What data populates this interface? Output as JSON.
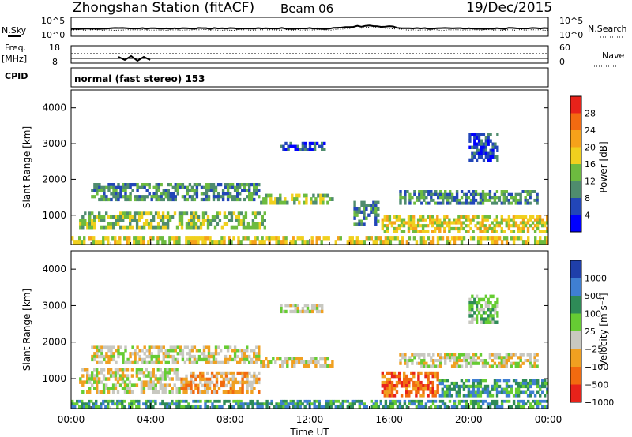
{
  "header": {
    "station": "Zhongshan Station (fitACF)",
    "beam": "Beam 06",
    "date": "19/Dec/2015"
  },
  "top_panels": {
    "nsky_label": "N.Sky",
    "nsky_ticks": [
      "10^5",
      "10^0"
    ],
    "nsearch_label": "N.Search",
    "nsearch_ticks": [
      "10^5",
      "10^0"
    ],
    "freq_label_1": "Freq.",
    "freq_label_2": "[MHz]",
    "freq_ticks": [
      "18",
      "8"
    ],
    "nave_label": "Nave",
    "nave_ticks": [
      "60",
      "0"
    ],
    "cpid_label": "CPID",
    "cpid_text": "normal (fast stereo) 153"
  },
  "chart_data": [
    {
      "type": "heatmap",
      "title": "",
      "ylabel": "Slant Range [km]",
      "ylim": [
        180,
        4500
      ],
      "yticks": [
        "1000",
        "2000",
        "3000",
        "4000"
      ],
      "colorbar_label": "Power [dB]",
      "colorbar_ticks": [
        "4",
        "8",
        "12",
        "16",
        "20",
        "24",
        "28"
      ],
      "colorscale": [
        "#0000ff",
        "#2246b8",
        "#4f8c6e",
        "#6dbb3f",
        "#f0d01e",
        "#f6a21a",
        "#f36a11",
        "#e8221a"
      ],
      "regions": [
        {
          "t0": 0.0,
          "t1": 24.0,
          "r0": 200,
          "r1": 420,
          "level": 4
        },
        {
          "t0": 0.4,
          "t1": 9.8,
          "r0": 620,
          "r1": 1100,
          "level": 3
        },
        {
          "t0": 15.6,
          "t1": 24.0,
          "r0": 500,
          "r1": 1000,
          "level": 4
        },
        {
          "t0": 1.0,
          "t1": 9.5,
          "r0": 1400,
          "r1": 1900,
          "level": 2
        },
        {
          "t0": 9.5,
          "t1": 13.2,
          "r0": 1300,
          "r1": 1600,
          "level": 3
        },
        {
          "t0": 16.5,
          "t1": 23.5,
          "r0": 1300,
          "r1": 1700,
          "level": 2
        },
        {
          "t0": 10.5,
          "t1": 12.8,
          "r0": 2800,
          "r1": 3050,
          "level": 1
        },
        {
          "t0": 20.0,
          "t1": 21.5,
          "r0": 2500,
          "r1": 3300,
          "level": 1
        },
        {
          "t0": 14.2,
          "t1": 15.5,
          "r0": 700,
          "r1": 1400,
          "level": 2
        }
      ]
    },
    {
      "type": "heatmap",
      "title": "",
      "ylabel": "Slant Range [km]",
      "ylim": [
        180,
        4500
      ],
      "yticks": [
        "1000",
        "2000",
        "3000",
        "4000"
      ],
      "colorbar_label": "Velocity [m s⁻¹]",
      "colorbar_ticks": [
        "1000",
        "500",
        "100",
        "25",
        "−25",
        "−100",
        "−500",
        "−1000"
      ],
      "colorscale": [
        "#1f3faa",
        "#3f7fd2",
        "#2e8b57",
        "#66cc33",
        "#c8c8c0",
        "#f0a020",
        "#f26a0f",
        "#e8221a"
      ],
      "regions": [
        {
          "t0": 0.0,
          "t1": 24.0,
          "r0": 200,
          "r1": 420,
          "level": 2
        },
        {
          "t0": 0.4,
          "t1": 5.5,
          "r0": 600,
          "r1": 1300,
          "level": 4
        },
        {
          "t0": 5.5,
          "t1": 9.5,
          "r0": 600,
          "r1": 1200,
          "level": 5
        },
        {
          "t0": 1.0,
          "t1": 9.5,
          "r0": 1400,
          "r1": 1900,
          "level": 4
        },
        {
          "t0": 9.5,
          "t1": 13.2,
          "r0": 1300,
          "r1": 1600,
          "level": 4
        },
        {
          "t0": 15.6,
          "t1": 18.5,
          "r0": 500,
          "r1": 1200,
          "level": 6
        },
        {
          "t0": 18.5,
          "t1": 24.0,
          "r0": 500,
          "r1": 1000,
          "level": 2
        },
        {
          "t0": 16.5,
          "t1": 23.5,
          "r0": 1300,
          "r1": 1700,
          "level": 4
        },
        {
          "t0": 10.5,
          "t1": 12.8,
          "r0": 2800,
          "r1": 3050,
          "level": 4
        },
        {
          "t0": 20.0,
          "t1": 21.5,
          "r0": 2500,
          "r1": 3300,
          "level": 3
        }
      ]
    }
  ],
  "xaxis": {
    "xlim": [
      0,
      24
    ],
    "tick_labels": [
      "00:00",
      "04:00",
      "08:00",
      "12:00",
      "16:00",
      "20:00",
      "00:00"
    ],
    "xlabel": "Time UT"
  }
}
